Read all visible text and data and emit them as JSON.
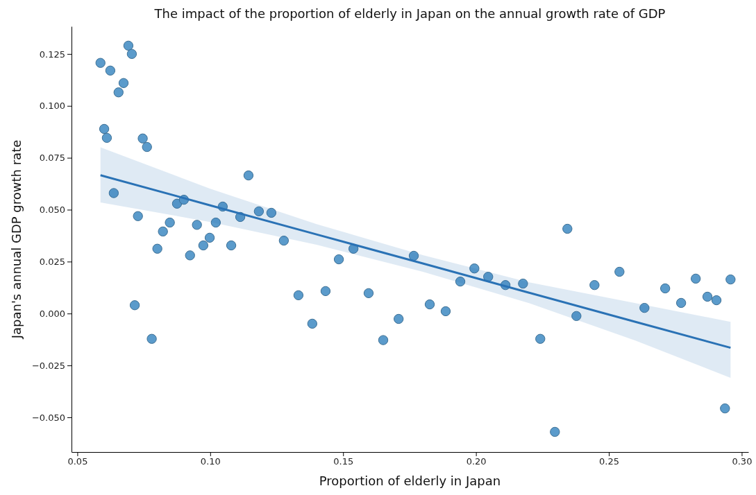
{
  "chart_data": {
    "type": "scatter",
    "title": "The impact of the proportion of elderly in Japan on the annual growth rate of GDP",
    "xlabel": "Proportion of elderly in Japan",
    "ylabel": "Japan's annual GDP growth rate",
    "xlim": [
      0.0478,
      0.3025
    ],
    "ylim": [
      -0.0667,
      0.1383
    ],
    "xticks": [
      {
        "value": 0.05,
        "label": "0.05"
      },
      {
        "value": 0.1,
        "label": "0.10"
      },
      {
        "value": 0.15,
        "label": "0.15"
      },
      {
        "value": 0.2,
        "label": "0.20"
      },
      {
        "value": 0.25,
        "label": "0.25"
      },
      {
        "value": 0.3,
        "label": "0.30"
      }
    ],
    "yticks": [
      {
        "value": -0.05,
        "label": "−0.050"
      },
      {
        "value": -0.025,
        "label": "−0.025"
      },
      {
        "value": 0,
        "label": "0.000"
      },
      {
        "value": 0.025,
        "label": "0.025"
      },
      {
        "value": 0.05,
        "label": "0.050"
      },
      {
        "value": 0.075,
        "label": "0.075"
      },
      {
        "value": 0.1,
        "label": "0.100"
      },
      {
        "value": 0.125,
        "label": "0.125"
      }
    ],
    "grid": false,
    "series": [
      {
        "marker": "circle",
        "color": "#5b9bcb",
        "x": [
          0.0587,
          0.0601,
          0.0611,
          0.0624,
          0.0637,
          0.0655,
          0.0674,
          0.0692,
          0.0705,
          0.0716,
          0.0728,
          0.0746,
          0.0762,
          0.078,
          0.0801,
          0.0822,
          0.0848,
          0.0875,
          0.0901,
          0.0924,
          0.095,
          0.0974,
          0.0998,
          0.1021,
          0.1047,
          0.1079,
          0.1113,
          0.1144,
          0.1183,
          0.123,
          0.1277,
          0.1332,
          0.1384,
          0.1434,
          0.1484,
          0.1539,
          0.1596,
          0.1651,
          0.1709,
          0.1766,
          0.1826,
          0.1886,
          0.1941,
          0.1994,
          0.2046,
          0.2111,
          0.2177,
          0.2242,
          0.2297,
          0.2344,
          0.2378,
          0.2446,
          0.254,
          0.2634,
          0.2712,
          0.2772,
          0.2827,
          0.2871,
          0.2905,
          0.2937,
          0.2958
        ],
        "values": [
          0.1207,
          0.0889,
          0.0846,
          0.117,
          0.058,
          0.1065,
          0.111,
          0.129,
          0.125,
          0.004,
          0.0469,
          0.0843,
          0.0802,
          -0.0122,
          0.0312,
          0.0395,
          0.0438,
          0.0529,
          0.0548,
          0.028,
          0.0427,
          0.0328,
          0.0365,
          0.0438,
          0.0515,
          0.0328,
          0.0465,
          0.0665,
          0.0492,
          0.0485,
          0.0351,
          0.0088,
          -0.0049,
          0.0108,
          0.0261,
          0.0312,
          0.0098,
          -0.0128,
          -0.0026,
          0.0278,
          0.0044,
          0.0011,
          0.0154,
          0.0217,
          0.0177,
          0.0137,
          0.0144,
          -0.0122,
          -0.057,
          0.0408,
          -0.0012,
          0.0137,
          0.0201,
          0.0027,
          0.0121,
          0.0051,
          0.0168,
          0.0081,
          0.0064,
          -0.0457,
          0.0164
        ]
      },
      {
        "type": "line",
        "color": "#2a72b5",
        "line_style": "solid",
        "x": [
          0.0587,
          0.1,
          0.14,
          0.18,
          0.22,
          0.26,
          0.2958
        ],
        "values": [
          0.0666,
          0.0521,
          0.0381,
          0.0241,
          0.01,
          -0.004,
          -0.0165
        ],
        "lower": [
          0.0535,
          0.0441,
          0.0331,
          0.0201,
          0.005,
          -0.013,
          -0.031
        ],
        "upper": [
          0.08,
          0.0601,
          0.0431,
          0.0281,
          0.015,
          0.005,
          -0.004
        ]
      }
    ]
  }
}
